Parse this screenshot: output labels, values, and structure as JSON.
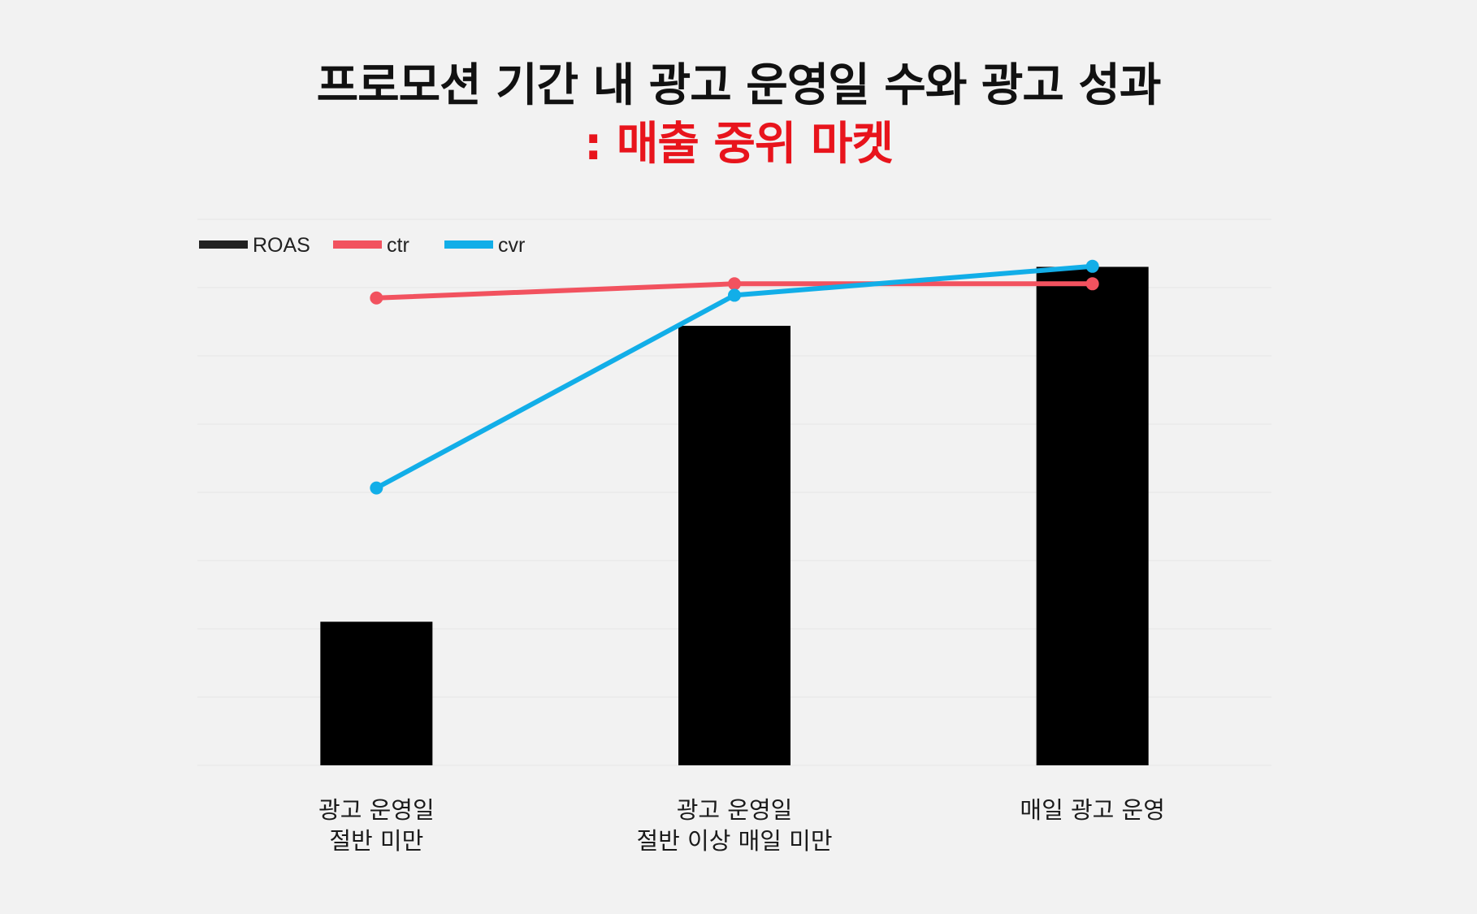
{
  "title": {
    "line1": "프로모션 기간 내 광고 운영일 수와 광고 성과",
    "line2": ": 매출 중위 마켓"
  },
  "colors": {
    "background": "#f2f2f2",
    "title": "#111111",
    "subtitle": "#e8141c",
    "roas": "#000000",
    "ctr": "#f2525f",
    "cvr": "#12aee8",
    "grid": "#e9e9e9"
  },
  "chart_data": {
    "type": "bar",
    "categories": [
      [
        "광고 운영일",
        "절반 미만"
      ],
      [
        "광고 운영일",
        "절반 이상 매일 미만"
      ],
      [
        "매일 광고 운영"
      ]
    ],
    "series": [
      {
        "name": "ROAS",
        "kind": "bar",
        "color": "#000000",
        "values": [
          26.3,
          80.5,
          91.3
        ]
      },
      {
        "name": "ctr",
        "kind": "line",
        "color": "#f2525f",
        "values": [
          85.6,
          88.2,
          88.2
        ]
      },
      {
        "name": "cvr",
        "kind": "line",
        "color": "#12aee8",
        "values": [
          50.8,
          86.1,
          91.4
        ]
      }
    ],
    "ylim": [
      0,
      100
    ],
    "gridlines": 8,
    "axis_labels_shown": false,
    "legend": {
      "placement": "top-left",
      "entries": [
        "ROAS",
        "ctr",
        "cvr"
      ]
    },
    "grid": true
  }
}
